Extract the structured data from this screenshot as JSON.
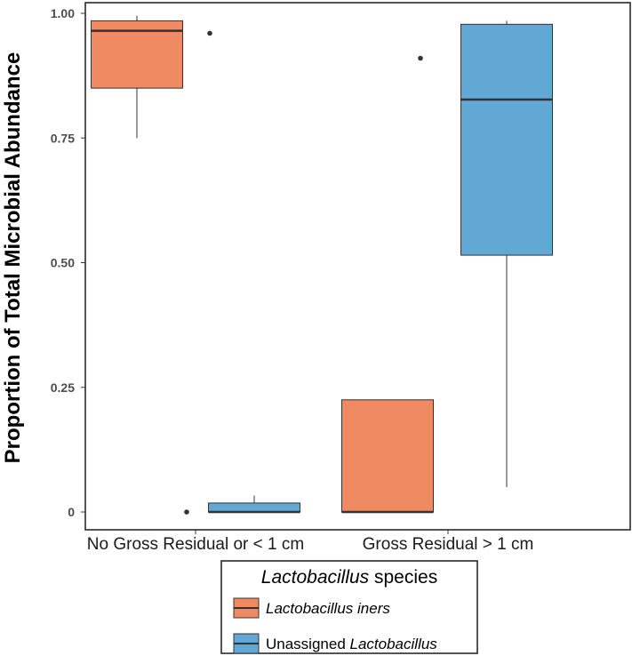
{
  "chart_data": {
    "type": "boxplot",
    "title": "",
    "xlabel": "",
    "ylabel": "Proportion of Total Microbial Abundance",
    "ylim": [
      0,
      1.0
    ],
    "y_ticks": [
      {
        "value": 0,
        "label": "0"
      },
      {
        "value": 0.25,
        "label": "0.25"
      },
      {
        "value": 0.5,
        "label": "0.50"
      },
      {
        "value": 0.75,
        "label": "0.75"
      },
      {
        "value": 1.0,
        "label": "1.00"
      }
    ],
    "grid": false,
    "categories": [
      "No Gross Residual or < 1 cm",
      "Gross Residual > 1 cm"
    ],
    "legend": {
      "title_italic": "Lactobacillus",
      "title_rest": " species",
      "placement": "bottom"
    },
    "series": [
      {
        "name": "Lactobacillus iners",
        "legend_parts": [
          {
            "text": "Lactobacillus iners",
            "italic": true
          }
        ],
        "color": "#f08a62",
        "boxes": [
          {
            "category": "No Gross Residual or < 1 cm",
            "min": 0.75,
            "q1": 0.85,
            "median": 0.965,
            "q3": 0.985,
            "max": 0.995,
            "outliers": [
              0.0
            ]
          },
          {
            "category": "Gross Residual > 1 cm",
            "min": 0.0,
            "q1": 0.0,
            "median": 0.0,
            "q3": 0.225,
            "max": 0.225,
            "outliers": [
              0.91
            ]
          }
        ]
      },
      {
        "name": "Unassigned Lactobacillus",
        "legend_parts": [
          {
            "text": "Unassigned ",
            "italic": false
          },
          {
            "text": "Lactobacillus",
            "italic": true
          }
        ],
        "color": "#62a8d4",
        "boxes": [
          {
            "category": "No Gross Residual or < 1 cm",
            "min": 0.0,
            "q1": 0.0,
            "median": 0.0,
            "q3": 0.018,
            "max": 0.033,
            "outliers": [
              0.96
            ]
          },
          {
            "category": "Gross Residual > 1 cm",
            "min": 0.05,
            "q1": 0.515,
            "median": 0.827,
            "q3": 0.978,
            "max": 0.985,
            "outliers": []
          }
        ]
      }
    ]
  }
}
